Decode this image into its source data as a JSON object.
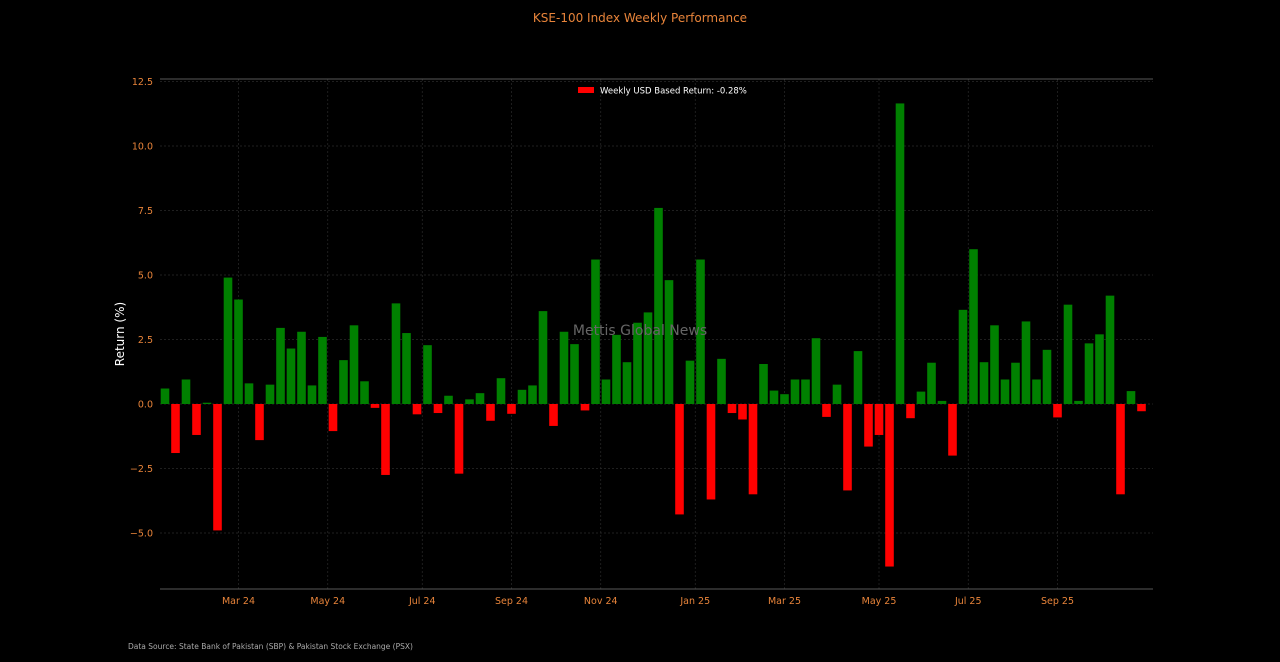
{
  "chart_data": {
    "type": "bar",
    "title": "KSE-100 Index Weekly Performance",
    "ylabel": "Return (%)",
    "xlabel": "",
    "ylim": [
      -7.2,
      12.6
    ],
    "y_ticks": [
      -5.0,
      -2.5,
      0.0,
      2.5,
      5.0,
      7.5,
      10.0,
      12.5
    ],
    "y_tick_labels": [
      "−5.0",
      "−2.5",
      "0.0",
      "2.5",
      "5.0",
      "7.5",
      "10.0",
      "12.5"
    ],
    "x_tick_labels": [
      "Mar 24",
      "May 24",
      "Jul 24",
      "Sep 24",
      "Nov 24",
      "Jan 25",
      "Mar 25",
      "May 25",
      "Jul 25",
      "Sep 25"
    ],
    "x_tick_weeks": [
      7,
      15.5,
      24.5,
      33,
      41.5,
      50.5,
      59,
      68,
      76.5,
      85
    ],
    "legend_label": "Weekly USD Based Return: -0.28%",
    "legend_placement": "top-center",
    "watermark": "Mettis Global News",
    "source": "Data Source: State Bank of Pakistan (SBP) & Pakistan Stock Exchange (PSX)",
    "grid": true,
    "colors": {
      "positive": "#008000",
      "negative": "#ff0000",
      "accent": "#e8843a",
      "background": "#000000"
    },
    "values": [
      0.6,
      -1.9,
      0.95,
      -1.2,
      0.05,
      -4.9,
      4.9,
      4.05,
      0.8,
      -1.4,
      0.75,
      2.95,
      2.15,
      2.8,
      0.72,
      2.6,
      -1.05,
      1.7,
      3.05,
      0.88,
      -0.15,
      -2.75,
      3.9,
      2.75,
      -0.4,
      2.28,
      -0.35,
      0.32,
      -2.7,
      0.18,
      0.42,
      -0.65,
      1.0,
      -0.38,
      0.55,
      0.72,
      3.6,
      -0.85,
      2.8,
      2.32,
      -0.25,
      5.6,
      0.95,
      2.68,
      1.62,
      3.15,
      3.55,
      7.6,
      4.8,
      -4.28,
      1.68,
      5.6,
      -3.7,
      1.75,
      -0.35,
      -0.6,
      -3.5,
      1.55,
      0.52,
      0.38,
      0.95,
      0.95,
      2.55,
      -0.5,
      0.75,
      -3.35,
      2.05,
      -1.65,
      -1.2,
      -6.3,
      11.65,
      -0.55,
      0.48,
      1.6,
      0.12,
      -2.0,
      3.65,
      6.0,
      1.62,
      3.05,
      0.95,
      1.6,
      3.2,
      0.95,
      2.1,
      -0.52,
      3.85,
      0.12,
      2.35,
      2.7,
      4.2,
      -3.5,
      0.5,
      -0.28
    ]
  }
}
